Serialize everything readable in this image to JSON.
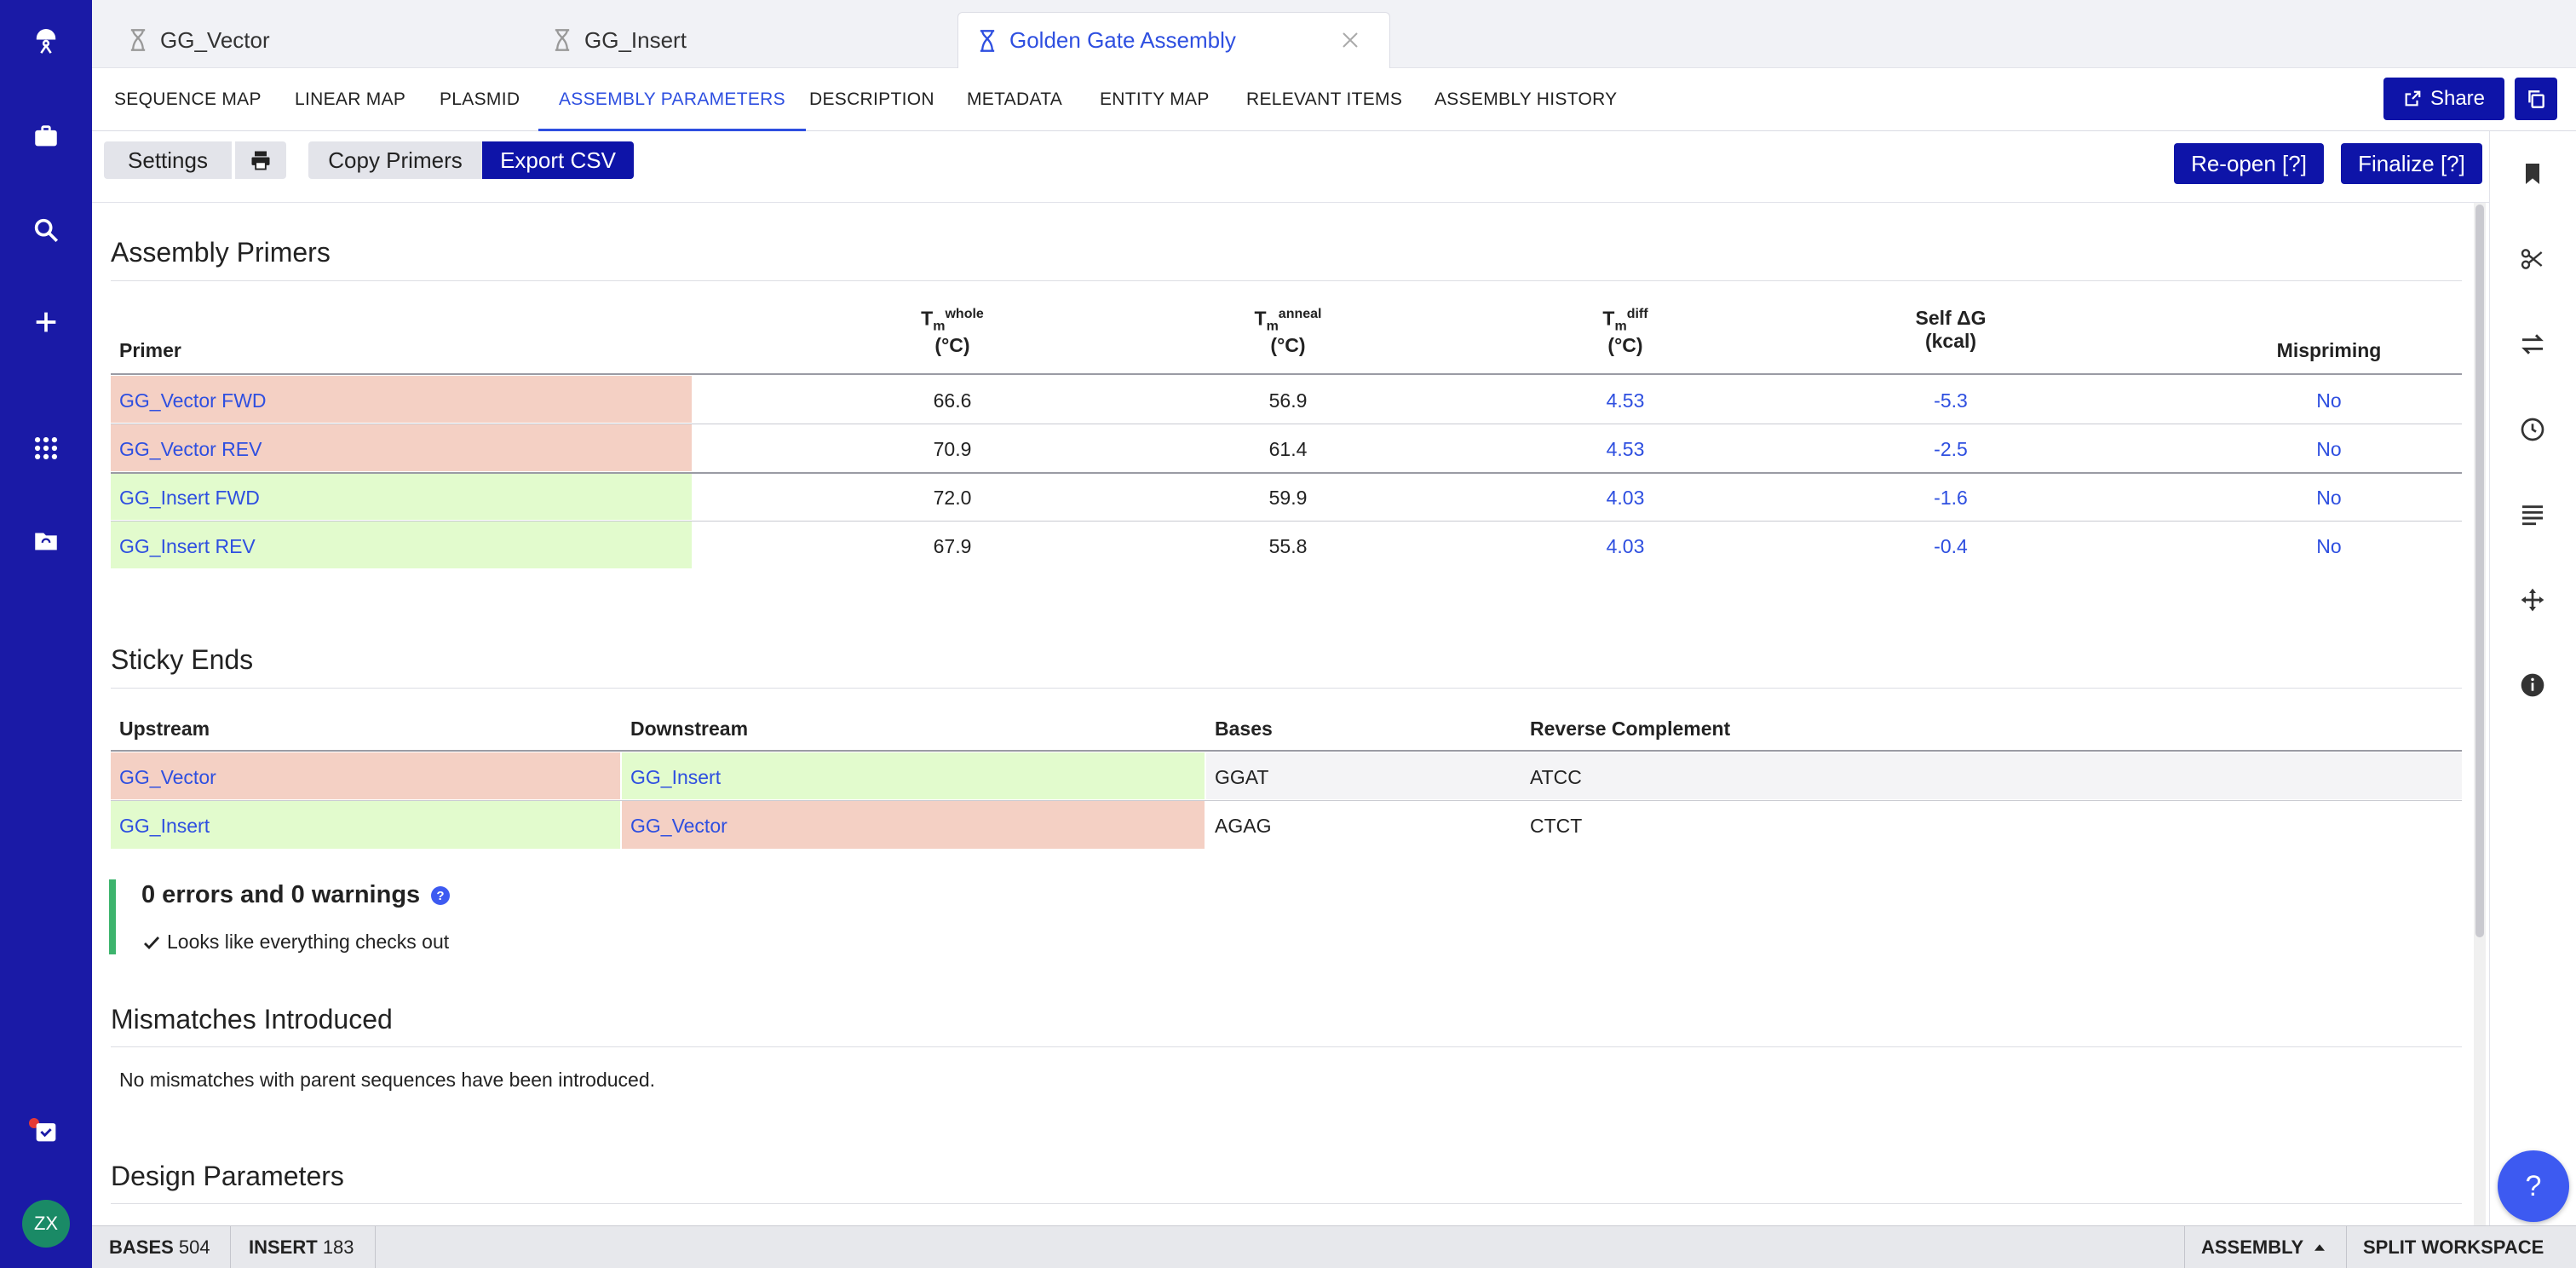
{
  "tabs": [
    {
      "label": "GG_Vector"
    },
    {
      "label": "GG_Insert"
    },
    {
      "label": "Golden Gate Assembly"
    }
  ],
  "subnav": [
    "SEQUENCE MAP",
    "LINEAR MAP",
    "PLASMID",
    "ASSEMBLY PARAMETERS",
    "DESCRIPTION",
    "METADATA",
    "ENTITY MAP",
    "RELEVANT ITEMS",
    "ASSEMBLY HISTORY"
  ],
  "subnav_active": "ASSEMBLY PARAMETERS",
  "share_label": "Share",
  "toolbar": {
    "settings": "Settings",
    "copy_primers": "Copy Primers",
    "export_csv": "Export CSV",
    "reopen": "Re-open [?]",
    "finalize": "Finalize [?]"
  },
  "primers": {
    "title": "Assembly Primers",
    "headers": {
      "primer": "Primer",
      "tm_whole_t": "T",
      "tm_whole_sub": "m",
      "tm_whole_sup": "whole",
      "tm_whole_unit": "(°C)",
      "tm_anneal_t": "T",
      "tm_anneal_sub": "m",
      "tm_anneal_sup": "anneal",
      "tm_anneal_unit": "(°C)",
      "tm_diff_t": "T",
      "tm_diff_sub": "m",
      "tm_diff_sup": "diff",
      "tm_diff_unit": "(°C)",
      "self_dg": "Self ΔG",
      "self_dg_unit": "(kcal)",
      "mispriming": "Mispriming"
    },
    "rows": [
      {
        "name": "GG_Vector FWD",
        "tm_whole": "66.6",
        "tm_anneal": "56.9",
        "tm_diff": "4.53",
        "self_dg": "-5.3",
        "mispriming": "No",
        "color": "#f4d0c4"
      },
      {
        "name": "GG_Vector REV",
        "tm_whole": "70.9",
        "tm_anneal": "61.4",
        "tm_diff": "4.53",
        "self_dg": "-2.5",
        "mispriming": "No",
        "color": "#f4d0c4"
      },
      {
        "name": "GG_Insert FWD",
        "tm_whole": "72.0",
        "tm_anneal": "59.9",
        "tm_diff": "4.03",
        "self_dg": "-1.6",
        "mispriming": "No",
        "color": "#e2fbcd"
      },
      {
        "name": "GG_Insert REV",
        "tm_whole": "67.9",
        "tm_anneal": "55.8",
        "tm_diff": "4.03",
        "self_dg": "-0.4",
        "mispriming": "No",
        "color": "#e2fbcd"
      }
    ]
  },
  "sticky": {
    "title": "Sticky Ends",
    "headers": {
      "upstream": "Upstream",
      "downstream": "Downstream",
      "bases": "Bases",
      "revcomp": "Reverse Complement"
    },
    "rows": [
      {
        "upstream": "GG_Vector",
        "downstream": "GG_Insert",
        "bases": "GGAT",
        "revcomp": "ATCC"
      },
      {
        "upstream": "GG_Insert",
        "downstream": "GG_Vector",
        "bases": "AGAG",
        "revcomp": "CTCT"
      }
    ]
  },
  "status": {
    "heading": "0 errors and 0 warnings",
    "message": "Looks like everything checks out"
  },
  "mismatches": {
    "title": "Mismatches Introduced",
    "text": "No mismatches with parent sequences have been introduced."
  },
  "design_params": {
    "title": "Design Parameters"
  },
  "user": {
    "initials": "ZX"
  },
  "help_label": "?",
  "bottom": {
    "bases_label": "BASES",
    "bases_value": "504",
    "insert_label": "INSERT",
    "insert_value": "183",
    "assembly": "ASSEMBLY",
    "split": "SPLIT WORKSPACE"
  },
  "colors": {
    "accent": "#2e4fe0",
    "nav": "#1a1aa6",
    "button": "#0e14a8",
    "vector": "#f4d0c4",
    "insert": "#e2fbcd"
  }
}
